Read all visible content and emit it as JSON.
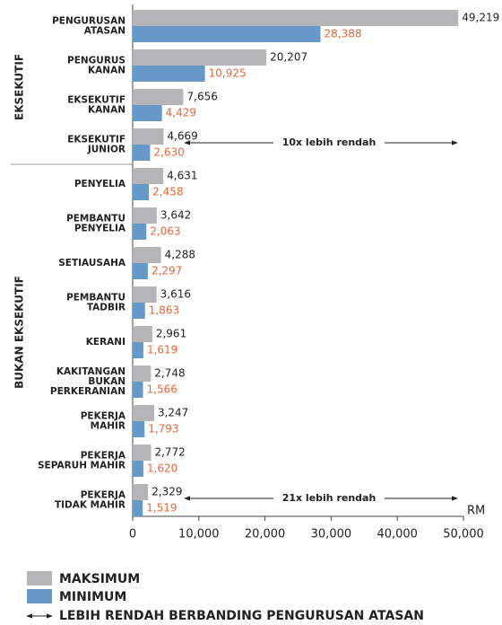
{
  "chart_data": {
    "type": "barh",
    "categories": [
      [
        "PENGURUSAN",
        "ATASAN"
      ],
      [
        "PENGURUS",
        "KANAN"
      ],
      [
        "EKSEKUTIF",
        "KANAN"
      ],
      [
        "EKSEKUTIF",
        "JUNIOR"
      ],
      [
        "PENYELIA"
      ],
      [
        "PEMBANTU",
        "PENYELIA"
      ],
      [
        "SETIAUSAHA"
      ],
      [
        "PEMBANTU",
        "TADBIR"
      ],
      [
        "KERANI"
      ],
      [
        "KAKITANGAN",
        "BUKAN",
        "PERKERANIAN"
      ],
      [
        "PEKERJA",
        "MAHIR"
      ],
      [
        "PEKERJA",
        "SEPARUH MAHIR"
      ],
      [
        "PEKERJA",
        "TIDAK MAHIR"
      ]
    ],
    "series": [
      {
        "name": "MAKSIMUM",
        "color": "#b5b5b7",
        "label_color": "#222222",
        "values": [
          49219,
          20207,
          7656,
          4669,
          4631,
          3642,
          4288,
          3616,
          2961,
          2748,
          3247,
          2772,
          2329
        ],
        "value_labels": [
          "49,219",
          "20,207",
          "7,656",
          "4,669",
          "4,631",
          "3,642",
          "4,288",
          "3,616",
          "2,961",
          "2,748",
          "3,247",
          "2,772",
          "2,329"
        ]
      },
      {
        "name": "MINIMUM",
        "color": "#6699c8",
        "label_color": "#e8663a",
        "values": [
          28388,
          10925,
          4429,
          2630,
          2458,
          2063,
          2297,
          1863,
          1619,
          1566,
          1793,
          1620,
          1519
        ],
        "value_labels": [
          "28,388",
          "10,925",
          "4,429",
          "2,630",
          "2,458",
          "2,063",
          "2,297",
          "1,863",
          "1,619",
          "1,566",
          "1,793",
          "1,620",
          "1,519"
        ]
      }
    ],
    "xlabel": "RM",
    "xlim": [
      0,
      50000
    ],
    "xticks": [
      0,
      {
        "value": 10000,
        "label": "10,000"
      },
      {
        "value": 20000,
        "label": "20,000"
      },
      {
        "value": 30000,
        "label": "30,000"
      },
      {
        "value": 40000,
        "label": "40,000"
      },
      {
        "value": 50000,
        "label": "50,000"
      }
    ],
    "groups": [
      {
        "label": "EKSEKUTIF"
      },
      {
        "label": "BUKAN EKSEKUTIF"
      }
    ],
    "annotations": [
      {
        "text": "10x lebih rendah"
      },
      {
        "text": "21x lebih rendah"
      }
    ],
    "legend_note": "LEBIH RENDAH BERBANDING PENGURUSAN ATASAN"
  }
}
